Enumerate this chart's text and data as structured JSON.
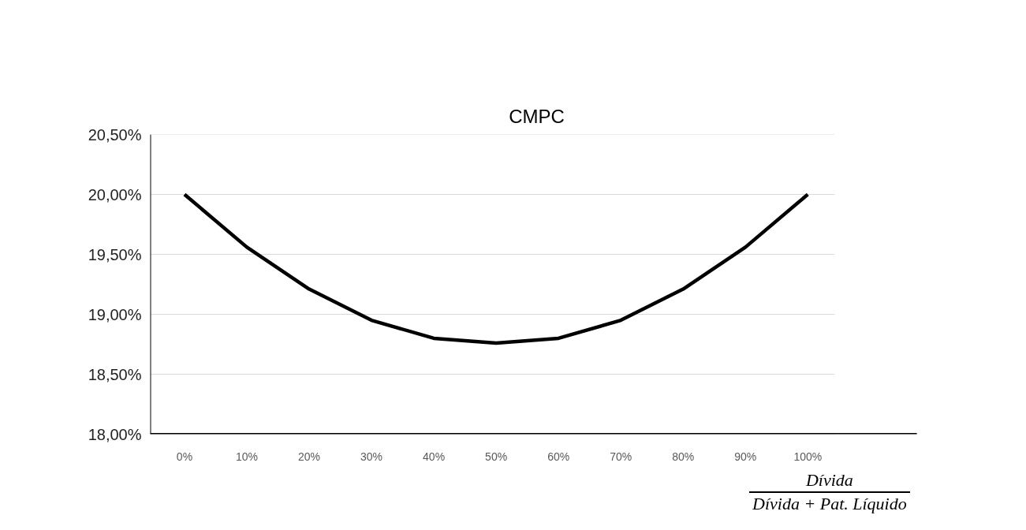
{
  "chart_data": {
    "type": "line",
    "title": "CMPC",
    "xlabel": "Dívida\nDívida + Pat. Líquido",
    "categories": [
      "0%",
      "10%",
      "20%",
      "30%",
      "40%",
      "50%",
      "60%",
      "70%",
      "80%",
      "90%",
      "100%"
    ],
    "series": [
      {
        "color": "#000000",
        "values": [
          20.0,
          19.56,
          19.21,
          18.95,
          18.8,
          18.76,
          18.8,
          18.95,
          19.21,
          19.56,
          20.0
        ]
      }
    ],
    "ylim": [
      18,
      20.5
    ],
    "yticks": [
      {
        "value": 18,
        "label": "18,00%"
      },
      {
        "value": 18.5,
        "label": "18,50%"
      },
      {
        "value": 19,
        "label": "19,00%"
      },
      {
        "value": 19.5,
        "label": "19,50%"
      },
      {
        "value": 20,
        "label": "20,00%"
      },
      {
        "value": 20.5,
        "label": "20,50%"
      }
    ],
    "grid": "y",
    "marker": "none",
    "line_style": "solid"
  }
}
